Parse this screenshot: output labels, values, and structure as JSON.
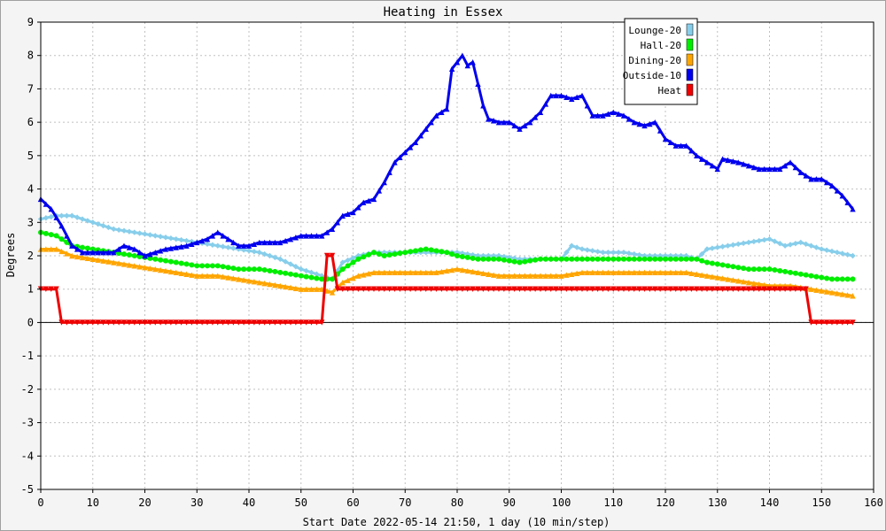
{
  "chart_data": {
    "type": "line",
    "title": "Heating in Essex",
    "xlabel": "Start Date 2022-05-14 21:50, 1 day (10 min/step)",
    "ylabel": "Degrees",
    "xlim": [
      0,
      160
    ],
    "ylim": [
      -5,
      9
    ],
    "x_ticks": [
      0,
      10,
      20,
      30,
      40,
      50,
      60,
      70,
      80,
      90,
      100,
      110,
      120,
      130,
      140,
      150,
      160
    ],
    "y_ticks": [
      -5,
      -4,
      -3,
      -2,
      -1,
      0,
      1,
      2,
      3,
      4,
      5,
      6,
      7,
      8,
      9
    ],
    "grid": true,
    "legend_position": "top-right",
    "series": [
      {
        "name": "Lounge-20",
        "color": "#87ceeb",
        "marker": "diamond",
        "points": [
          [
            0,
            3.1
          ],
          [
            3,
            3.2
          ],
          [
            6,
            3.2
          ],
          [
            10,
            3.0
          ],
          [
            14,
            2.8
          ],
          [
            18,
            2.7
          ],
          [
            22,
            2.6
          ],
          [
            26,
            2.5
          ],
          [
            30,
            2.4
          ],
          [
            34,
            2.3
          ],
          [
            38,
            2.2
          ],
          [
            42,
            2.1
          ],
          [
            46,
            1.9
          ],
          [
            50,
            1.6
          ],
          [
            54,
            1.4
          ],
          [
            56,
            1.3
          ],
          [
            58,
            1.8
          ],
          [
            61,
            2.0
          ],
          [
            64,
            2.1
          ],
          [
            67,
            2.1
          ],
          [
            70,
            2.1
          ],
          [
            74,
            2.1
          ],
          [
            78,
            2.1
          ],
          [
            80,
            2.1
          ],
          [
            84,
            2.0
          ],
          [
            88,
            2.0
          ],
          [
            92,
            1.9
          ],
          [
            96,
            1.9
          ],
          [
            100,
            1.9
          ],
          [
            102,
            2.3
          ],
          [
            104,
            2.2
          ],
          [
            108,
            2.1
          ],
          [
            112,
            2.1
          ],
          [
            116,
            2.0
          ],
          [
            120,
            2.0
          ],
          [
            124,
            2.0
          ],
          [
            126,
            1.9
          ],
          [
            128,
            2.2
          ],
          [
            132,
            2.3
          ],
          [
            136,
            2.4
          ],
          [
            140,
            2.5
          ],
          [
            143,
            2.3
          ],
          [
            146,
            2.4
          ],
          [
            150,
            2.2
          ],
          [
            153,
            2.1
          ],
          [
            156,
            2.0
          ]
        ]
      },
      {
        "name": "Hall-20",
        "color": "#00ee00",
        "marker": "circle",
        "points": [
          [
            0,
            2.7
          ],
          [
            3,
            2.6
          ],
          [
            6,
            2.3
          ],
          [
            10,
            2.2
          ],
          [
            14,
            2.1
          ],
          [
            18,
            2.0
          ],
          [
            22,
            1.9
          ],
          [
            26,
            1.8
          ],
          [
            30,
            1.7
          ],
          [
            34,
            1.7
          ],
          [
            38,
            1.6
          ],
          [
            42,
            1.6
          ],
          [
            46,
            1.5
          ],
          [
            50,
            1.4
          ],
          [
            54,
            1.3
          ],
          [
            56,
            1.3
          ],
          [
            58,
            1.6
          ],
          [
            61,
            1.9
          ],
          [
            64,
            2.1
          ],
          [
            66,
            2.0
          ],
          [
            70,
            2.1
          ],
          [
            74,
            2.2
          ],
          [
            78,
            2.1
          ],
          [
            80,
            2.0
          ],
          [
            84,
            1.9
          ],
          [
            88,
            1.9
          ],
          [
            92,
            1.8
          ],
          [
            96,
            1.9
          ],
          [
            100,
            1.9
          ],
          [
            102,
            1.9
          ],
          [
            106,
            1.9
          ],
          [
            110,
            1.9
          ],
          [
            114,
            1.9
          ],
          [
            118,
            1.9
          ],
          [
            122,
            1.9
          ],
          [
            126,
            1.9
          ],
          [
            128,
            1.8
          ],
          [
            132,
            1.7
          ],
          [
            136,
            1.6
          ],
          [
            140,
            1.6
          ],
          [
            144,
            1.5
          ],
          [
            148,
            1.4
          ],
          [
            152,
            1.3
          ],
          [
            156,
            1.3
          ]
        ]
      },
      {
        "name": "Dining-20",
        "color": "#ffa500",
        "marker": "triangle",
        "points": [
          [
            0,
            2.2
          ],
          [
            3,
            2.2
          ],
          [
            6,
            2.0
          ],
          [
            10,
            1.9
          ],
          [
            14,
            1.8
          ],
          [
            18,
            1.7
          ],
          [
            22,
            1.6
          ],
          [
            26,
            1.5
          ],
          [
            30,
            1.4
          ],
          [
            34,
            1.4
          ],
          [
            38,
            1.3
          ],
          [
            42,
            1.2
          ],
          [
            46,
            1.1
          ],
          [
            50,
            1.0
          ],
          [
            54,
            1.0
          ],
          [
            56,
            0.9
          ],
          [
            58,
            1.2
          ],
          [
            61,
            1.4
          ],
          [
            64,
            1.5
          ],
          [
            70,
            1.5
          ],
          [
            76,
            1.5
          ],
          [
            80,
            1.6
          ],
          [
            84,
            1.5
          ],
          [
            88,
            1.4
          ],
          [
            92,
            1.4
          ],
          [
            96,
            1.4
          ],
          [
            100,
            1.4
          ],
          [
            104,
            1.5
          ],
          [
            108,
            1.5
          ],
          [
            112,
            1.5
          ],
          [
            116,
            1.5
          ],
          [
            120,
            1.5
          ],
          [
            124,
            1.5
          ],
          [
            128,
            1.4
          ],
          [
            132,
            1.3
          ],
          [
            136,
            1.2
          ],
          [
            140,
            1.1
          ],
          [
            144,
            1.1
          ],
          [
            148,
            1.0
          ],
          [
            152,
            0.9
          ],
          [
            156,
            0.8
          ]
        ]
      },
      {
        "name": "Outside-10",
        "color": "#0000ee",
        "marker": "triangle",
        "points": [
          [
            0,
            3.7
          ],
          [
            2,
            3.4
          ],
          [
            4,
            2.9
          ],
          [
            6,
            2.3
          ],
          [
            8,
            2.1
          ],
          [
            10,
            2.1
          ],
          [
            14,
            2.1
          ],
          [
            16,
            2.3
          ],
          [
            18,
            2.2
          ],
          [
            20,
            2.0
          ],
          [
            22,
            2.1
          ],
          [
            24,
            2.2
          ],
          [
            28,
            2.3
          ],
          [
            30,
            2.4
          ],
          [
            32,
            2.5
          ],
          [
            34,
            2.7
          ],
          [
            36,
            2.5
          ],
          [
            38,
            2.3
          ],
          [
            40,
            2.3
          ],
          [
            42,
            2.4
          ],
          [
            46,
            2.4
          ],
          [
            50,
            2.6
          ],
          [
            54,
            2.6
          ],
          [
            56,
            2.8
          ],
          [
            58,
            3.2
          ],
          [
            60,
            3.3
          ],
          [
            62,
            3.6
          ],
          [
            64,
            3.7
          ],
          [
            66,
            4.2
          ],
          [
            68,
            4.8
          ],
          [
            70,
            5.1
          ],
          [
            72,
            5.4
          ],
          [
            74,
            5.8
          ],
          [
            76,
            6.2
          ],
          [
            78,
            6.4
          ],
          [
            79,
            7.6
          ],
          [
            80,
            7.8
          ],
          [
            81,
            8.0
          ],
          [
            82,
            7.7
          ],
          [
            83,
            7.8
          ],
          [
            85,
            6.5
          ],
          [
            86,
            6.1
          ],
          [
            88,
            6.0
          ],
          [
            90,
            6.0
          ],
          [
            92,
            5.8
          ],
          [
            94,
            6.0
          ],
          [
            96,
            6.3
          ],
          [
            98,
            6.8
          ],
          [
            100,
            6.8
          ],
          [
            102,
            6.7
          ],
          [
            104,
            6.8
          ],
          [
            106,
            6.2
          ],
          [
            108,
            6.2
          ],
          [
            110,
            6.3
          ],
          [
            112,
            6.2
          ],
          [
            114,
            6.0
          ],
          [
            116,
            5.9
          ],
          [
            118,
            6.0
          ],
          [
            120,
            5.5
          ],
          [
            122,
            5.3
          ],
          [
            124,
            5.3
          ],
          [
            126,
            5.0
          ],
          [
            128,
            4.8
          ],
          [
            130,
            4.6
          ],
          [
            131,
            4.9
          ],
          [
            134,
            4.8
          ],
          [
            136,
            4.7
          ],
          [
            138,
            4.6
          ],
          [
            142,
            4.6
          ],
          [
            144,
            4.8
          ],
          [
            146,
            4.5
          ],
          [
            148,
            4.3
          ],
          [
            150,
            4.3
          ],
          [
            152,
            4.1
          ],
          [
            154,
            3.8
          ],
          [
            156,
            3.4
          ]
        ]
      },
      {
        "name": "Heat",
        "color": "#ee0000",
        "marker": "triangle-down",
        "points": [
          [
            0,
            1
          ],
          [
            3,
            1
          ],
          [
            4,
            0
          ],
          [
            54,
            0
          ],
          [
            55,
            2
          ],
          [
            56,
            2
          ],
          [
            57,
            1
          ],
          [
            147,
            1
          ],
          [
            148,
            0
          ],
          [
            156,
            0
          ]
        ]
      }
    ]
  }
}
